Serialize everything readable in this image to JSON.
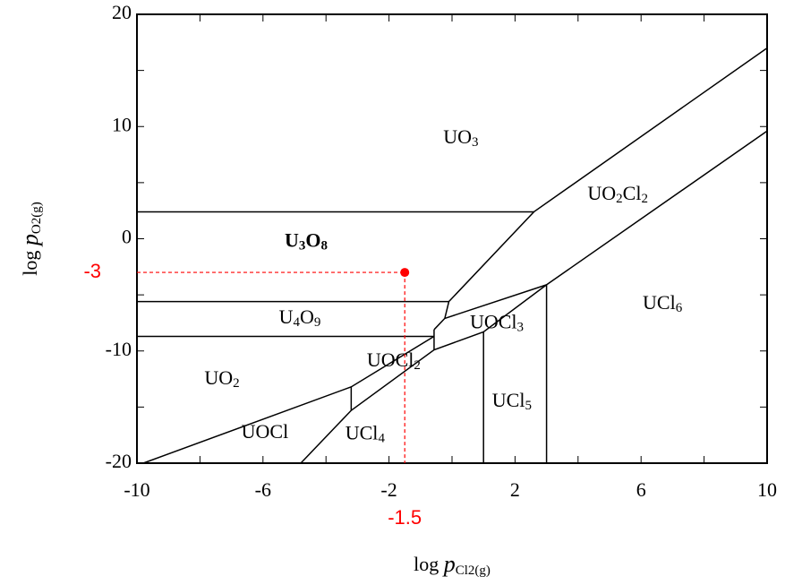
{
  "chart_data": {
    "type": "phase-diagram",
    "x_label": "log pCl2(g)",
    "y_label": "log pO2(g)",
    "xlim": [
      -10,
      10
    ],
    "ylim": [
      -20,
      20
    ],
    "xticks": [
      -10,
      -6,
      -2,
      2,
      6,
      10
    ],
    "yticks": [
      -20,
      -10,
      0,
      10,
      20
    ],
    "xminor_ticks": [
      -8,
      -4,
      0,
      4,
      8
    ],
    "yminor_ticks": [
      -15,
      -5,
      5,
      15
    ],
    "line_color": "#000000",
    "boundaries": [
      {
        "x": [
          -10,
          2.6
        ],
        "y": [
          2.4,
          2.4
        ]
      },
      {
        "x": [
          -0.57,
          -0.23,
          -0.1,
          2.6,
          10
        ],
        "y": [
          -8.1,
          -7.1,
          -5.6,
          2.4,
          17
        ]
      },
      {
        "x": [
          -10,
          -0.1
        ],
        "y": [
          -5.6,
          -5.6
        ]
      },
      {
        "x": [
          -10,
          -0.57
        ],
        "y": [
          -8.7,
          -8.7
        ]
      },
      {
        "x": [
          -9.8,
          -3.2,
          -0.57
        ],
        "y": [
          -20,
          -13.2,
          -8.7
        ]
      },
      {
        "x": [
          -4.8,
          -3.2,
          -0.57,
          1,
          3,
          10
        ],
        "y": [
          -20,
          -15.3,
          -9.9,
          -8.3,
          -4.1,
          9.6
        ]
      },
      {
        "x": [
          -3.2,
          -3.2
        ],
        "y": [
          -13.2,
          -15.3
        ]
      },
      {
        "x": [
          -0.57,
          -0.57
        ],
        "y": [
          -8.1,
          -9.9
        ]
      },
      {
        "x": [
          -0.23,
          3
        ],
        "y": [
          -7.1,
          -4.1
        ]
      },
      {
        "x": [
          1,
          1
        ],
        "y": [
          -8.3,
          -20
        ]
      },
      {
        "x": [
          3,
          3
        ],
        "y": [
          -4.1,
          -20
        ]
      }
    ],
    "regions": [
      {
        "label": "UO3",
        "x": 0.28,
        "y": 8.9
      },
      {
        "label": "U3O8",
        "x": -4.63,
        "y": -0.3,
        "bold": true
      },
      {
        "label": "UO2Cl2",
        "x": 5.26,
        "y": 3.87
      },
      {
        "label": "U4O9",
        "x": -4.83,
        "y": -7.14
      },
      {
        "label": "UOCl3",
        "x": 1.42,
        "y": -7.6
      },
      {
        "label": "UCl6",
        "x": 6.68,
        "y": -5.87
      },
      {
        "label": "UOCl2",
        "x": -1.85,
        "y": -10.97
      },
      {
        "label": "UO2",
        "x": -7.3,
        "y": -12.57
      },
      {
        "label": "UCl5",
        "x": 1.9,
        "y": -14.56
      },
      {
        "label": "UOCl",
        "x": -5.94,
        "y": -17.36
      },
      {
        "label": "UCl4",
        "x": -2.76,
        "y": -17.5
      }
    ],
    "highlight": {
      "x": -1.5,
      "y": -3,
      "color": "#ff0000"
    }
  }
}
